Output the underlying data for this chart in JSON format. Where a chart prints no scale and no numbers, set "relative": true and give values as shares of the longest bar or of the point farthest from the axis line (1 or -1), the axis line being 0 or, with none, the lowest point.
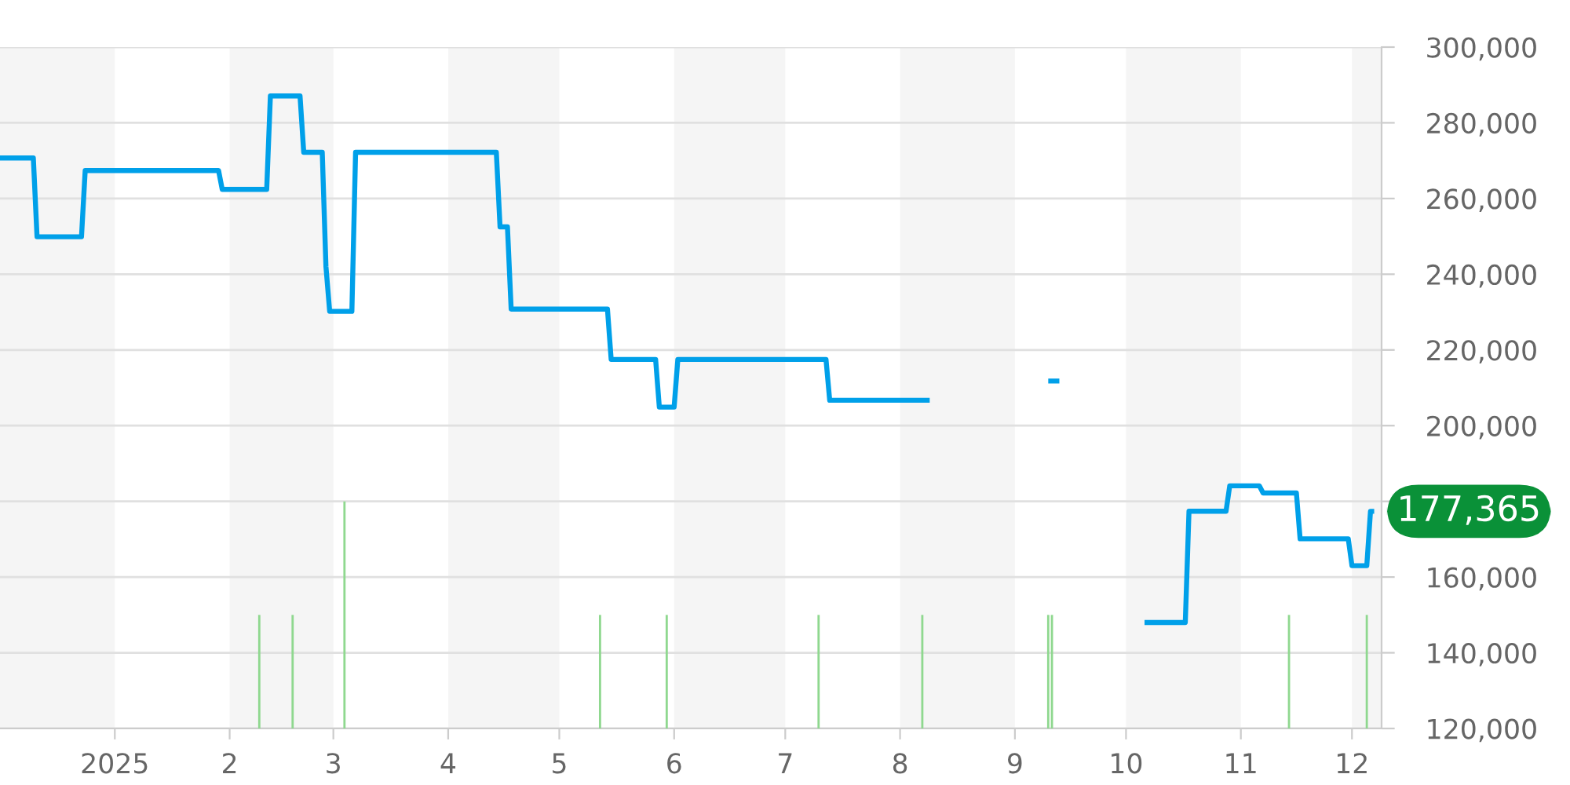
{
  "chart_data": [
    {
      "type": "line",
      "color": "#00a0e9",
      "x": [
        "2024-12-01",
        "2024-12-10",
        "2024-12-11",
        "2024-12-23",
        "2024-12-24",
        "2025-01-29",
        "2025-01-30",
        "2025-02-11",
        "2025-02-12",
        "2025-02-20",
        "2025-02-21",
        "2025-02-26",
        "2025-02-27",
        "2025-02-28",
        "2025-03-06",
        "2025-03-07",
        "2025-04-14",
        "2025-04-15",
        "2025-04-17",
        "2025-04-18",
        "2025-05-14",
        "2025-05-15",
        "2025-05-27",
        "2025-05-28",
        "2025-06-01",
        "2025-06-02",
        "2025-07-12",
        "2025-07-13",
        "2025-08-09",
        "2025-08-25",
        "2025-09-10",
        "2025-09-13",
        "2025-09-25",
        "2025-10-06",
        "2025-10-17",
        "2025-10-18",
        "2025-10-28",
        "2025-10-29",
        "2025-11-06",
        "2025-11-07",
        "2025-11-16",
        "2025-11-17",
        "2025-11-30",
        "2025-12-01",
        "2025-12-05",
        "2025-12-06",
        "2025-12-07"
      ],
      "values": [
        270700,
        270700,
        249900,
        249900,
        267400,
        267400,
        262400,
        262400,
        287100,
        287100,
        272200,
        272200,
        242000,
        230200,
        230200,
        272200,
        272200,
        252500,
        252500,
        230800,
        230800,
        217500,
        217500,
        204900,
        204900,
        217500,
        217500,
        206700,
        206700,
        null,
        211800,
        211800,
        null,
        148000,
        148000,
        177400,
        177400,
        184100,
        184100,
        182200,
        182200,
        170100,
        170100,
        163000,
        163000,
        177365,
        177365
      ],
      "xlim": [
        "2024-12-01",
        "2025-12-09"
      ],
      "xticks": [
        {
          "value": "2025-01-01",
          "label": "2025"
        },
        {
          "value": "2025-02-01",
          "label": "2"
        },
        {
          "value": "2025-03-01",
          "label": "3"
        },
        {
          "value": "2025-04-01",
          "label": "4"
        },
        {
          "value": "2025-05-01",
          "label": "5"
        },
        {
          "value": "2025-06-01",
          "label": "6"
        },
        {
          "value": "2025-07-01",
          "label": "7"
        },
        {
          "value": "2025-08-01",
          "label": "8"
        },
        {
          "value": "2025-09-01",
          "label": "9"
        },
        {
          "value": "2025-10-01",
          "label": "10"
        },
        {
          "value": "2025-11-01",
          "label": "11"
        },
        {
          "value": "2025-12-01",
          "label": "12"
        }
      ],
      "ylim": [
        120000,
        300000
      ],
      "yticks": [
        {
          "value": 120000,
          "label": "120,000"
        },
        {
          "value": 140000,
          "label": "140,000"
        },
        {
          "value": 160000,
          "label": "160,000"
        },
        {
          "value": 180000,
          "label": null
        },
        {
          "value": 200000,
          "label": "200,000"
        },
        {
          "value": 220000,
          "label": "220,000"
        },
        {
          "value": 240000,
          "label": "240,000"
        },
        {
          "value": 260000,
          "label": "260,000"
        },
        {
          "value": 280000,
          "label": "280,000"
        },
        {
          "value": 300000,
          "label": "300,000"
        }
      ],
      "grid": "y",
      "bands": [
        {
          "axis": "x",
          "from": "2024-12-01",
          "to": "2025-01-01",
          "color": "#f5f5f5"
        },
        {
          "axis": "x",
          "from": "2025-02-01",
          "to": "2025-03-01",
          "color": "#f5f5f5"
        },
        {
          "axis": "x",
          "from": "2025-04-01",
          "to": "2025-05-01",
          "color": "#f5f5f5"
        },
        {
          "axis": "x",
          "from": "2025-06-01",
          "to": "2025-07-01",
          "color": "#f5f5f5"
        },
        {
          "axis": "x",
          "from": "2025-08-01",
          "to": "2025-09-01",
          "color": "#f5f5f5"
        },
        {
          "axis": "x",
          "from": "2025-10-01",
          "to": "2025-11-01",
          "color": "#f5f5f5"
        },
        {
          "axis": "x",
          "from": "2025-12-01",
          "to": "2025-12-09",
          "color": "#f5f5f5"
        }
      ],
      "annotations": [
        {
          "text": "177,365",
          "x": "2025-12-07",
          "y": 177365
        }
      ]
    },
    {
      "type": "bar",
      "relative": true,
      "color": "#8fd88f",
      "x": [
        "2025-02-09",
        "2025-02-18",
        "2025-03-04",
        "2025-05-12",
        "2025-05-30",
        "2025-07-10",
        "2025-08-07",
        "2025-09-10",
        "2025-09-11",
        "2025-11-14",
        "2025-12-05"
      ],
      "values": [
        0.5,
        0.5,
        1,
        0.5,
        0.5,
        0.5,
        0.5,
        0.5,
        0.5,
        0.5,
        0.5
      ],
      "xlim": [
        "2024-12-01",
        "2025-12-09"
      ]
    }
  ]
}
